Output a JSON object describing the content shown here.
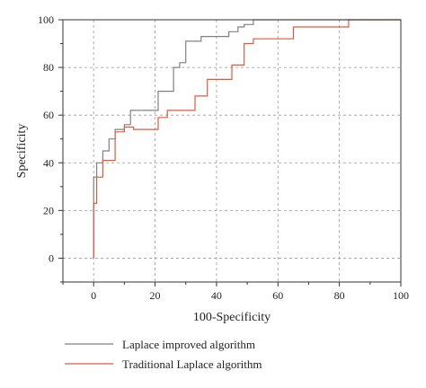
{
  "chart_data": {
    "type": "line",
    "xlabel": "100-Specificity",
    "ylabel": "Specificity",
    "xlim": [
      -10,
      100
    ],
    "ylim": [
      -10,
      100
    ],
    "xticks": [
      0,
      20,
      40,
      60,
      80,
      100
    ],
    "yticks": [
      0,
      20,
      40,
      60,
      80,
      100
    ],
    "grid": "dashed",
    "legend_position": "bottom",
    "series": [
      {
        "name": "Laplace improved algorithm",
        "color": "#808080",
        "x": [
          0,
          0,
          1,
          1,
          3,
          3,
          5,
          5,
          7,
          7,
          10,
          10,
          12,
          12,
          21,
          21,
          26,
          26,
          28,
          28,
          30,
          30,
          35,
          35,
          44,
          44,
          47,
          47,
          49,
          49,
          52,
          52,
          83,
          83,
          100
        ],
        "y": [
          0,
          34,
          34,
          40,
          40,
          45,
          45,
          50,
          50,
          54,
          54,
          56,
          56,
          62,
          62,
          70,
          70,
          80,
          80,
          82,
          82,
          91,
          91,
          93,
          93,
          95,
          95,
          97,
          97,
          98,
          98,
          100,
          100,
          100,
          100
        ]
      },
      {
        "name": "Traditional Laplace algorithm",
        "color": "#e05a3c",
        "x": [
          0,
          0,
          1,
          1,
          3,
          3,
          7,
          7,
          10,
          10,
          13,
          13,
          21,
          21,
          24,
          24,
          33,
          33,
          37,
          37,
          45,
          45,
          49,
          49,
          52,
          52,
          65,
          65,
          83,
          83,
          100
        ],
        "y": [
          0,
          23,
          23,
          34,
          34,
          41,
          41,
          53,
          53,
          55,
          55,
          54,
          54,
          59,
          59,
          62,
          62,
          68,
          68,
          75,
          75,
          81,
          81,
          90,
          90,
          92,
          92,
          97,
          97,
          100,
          100
        ]
      }
    ]
  }
}
